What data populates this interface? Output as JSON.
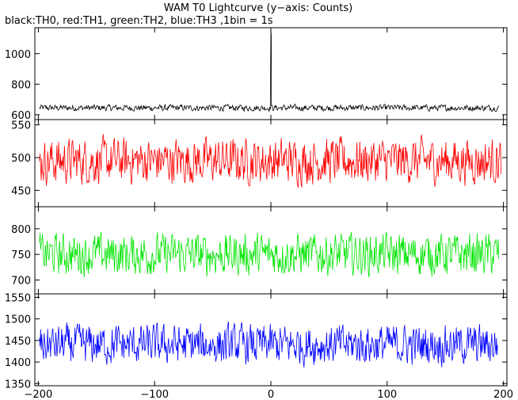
{
  "chart_data": {
    "type": "line",
    "title": "WAM T0 Lightcurve (y−axis: Counts)",
    "subtitle": "black:TH0, red:TH1, green:TH2, blue:TH3 ,1bin = 1s",
    "xlabel": "",
    "ylabel": "",
    "xlim": [
      -203,
      203
    ],
    "x_ticks": [
      -200,
      -100,
      0,
      100,
      200
    ],
    "x_tick_labels": [
      "−200",
      "−100",
      "0",
      "100",
      "200"
    ],
    "grid": false,
    "legend": "none",
    "panels": [
      {
        "name": "TH0",
        "color": "#000000",
        "ylim": [
          568,
          1170
        ],
        "y_ticks": [
          600,
          800,
          1000
        ],
        "baseline": 645,
        "noise_amplitude": 18,
        "x_range": [
          -199,
          196
        ],
        "spike": {
          "x": 0,
          "y": 1160,
          "drop_after": 0.3
        }
      },
      {
        "name": "TH1",
        "color": "#ff0000",
        "ylim": [
          425,
          558
        ],
        "y_ticks": [
          450,
          500,
          550
        ],
        "baseline": 495,
        "noise_amplitude": 30,
        "x_range": [
          -199,
          198
        ]
      },
      {
        "name": "TH2",
        "color": "#00e600",
        "ylim": [
          673,
          843
        ],
        "y_ticks": [
          700,
          750,
          800
        ],
        "baseline": 750,
        "noise_amplitude": 35,
        "x_range": [
          -199,
          196
        ]
      },
      {
        "name": "TH3",
        "color": "#0000ff",
        "ylim": [
          1345,
          1558
        ],
        "y_ticks": [
          1350,
          1400,
          1450,
          1500,
          1550
        ],
        "baseline": 1440,
        "noise_amplitude": 40,
        "x_range": [
          -199,
          195
        ]
      }
    ]
  }
}
